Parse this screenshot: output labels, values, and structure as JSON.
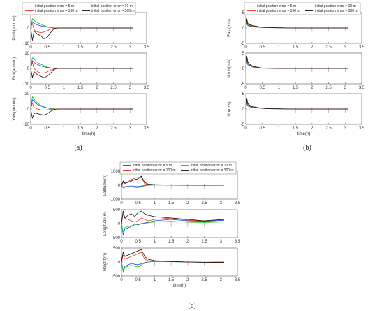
{
  "colors": {
    "series": [
      "#1f3fff",
      "#18c018",
      "#ff2a1a",
      "#111111"
    ]
  },
  "legend_entries": [
    "initial position error = 5 m",
    "initial position error = 10 m",
    "initial position error = 100 m",
    "initial position error = 300 m"
  ],
  "panels": [
    {
      "caption": "(a)"
    },
    {
      "caption": "(b)"
    },
    {
      "caption": "(c)"
    }
  ],
  "chart_data": [
    {
      "type": "line",
      "caption": "(a)",
      "series_names": [
        "initial position error = 5 m",
        "initial position error = 10 m",
        "initial position error = 100 m",
        "initial position error = 300 m"
      ],
      "subplots": [
        {
          "ylabel": "Pitch(arcmin)",
          "xlabel": "",
          "xlim": [
            0,
            3.5
          ],
          "ylim": [
            -10,
            10
          ],
          "xticks": [
            "0",
            "0.5",
            "1",
            "1.5",
            "2",
            "2.5",
            "3",
            "3.5"
          ],
          "yticks": [
            "-10",
            "0",
            "10"
          ],
          "x": [
            0,
            0.05,
            0.1,
            0.15,
            0.2,
            0.3,
            0.4,
            0.5,
            0.6,
            0.7,
            0.8,
            1.0,
            1.5,
            2.0,
            2.5,
            3.1
          ],
          "series": [
            [
              0,
              4,
              3,
              2.5,
              2,
              1.4,
              1,
              0.6,
              0.3,
              0.1,
              0,
              0,
              0,
              0,
              0,
              0
            ],
            [
              0,
              6,
              5,
              4,
              3.5,
              2.5,
              1.6,
              0.8,
              0.3,
              0.1,
              0,
              0,
              0,
              0,
              0,
              0
            ],
            [
              0,
              3,
              -1,
              -2,
              -2.5,
              -3,
              -2.6,
              -1.8,
              -0.8,
              -0.2,
              0,
              0,
              0,
              0,
              0,
              0
            ],
            [
              0,
              -8,
              -2,
              -3,
              -4,
              -5,
              -7,
              -6,
              -3,
              -0.5,
              0,
              0,
              0,
              0,
              0,
              0
            ]
          ]
        },
        {
          "ylabel": "Roll(arcmin)",
          "xlabel": "",
          "xlim": [
            0,
            3.5
          ],
          "ylim": [
            -10,
            10
          ],
          "xticks": [
            "0",
            "0.5",
            "1",
            "1.5",
            "2",
            "2.5",
            "3",
            "3.5"
          ],
          "yticks": [
            "-10",
            "0",
            "10"
          ],
          "x": [
            0,
            0.05,
            0.1,
            0.15,
            0.2,
            0.3,
            0.4,
            0.5,
            0.6,
            0.7,
            0.8,
            1.0,
            1.5,
            2.0,
            2.5,
            3.1
          ],
          "series": [
            [
              0,
              5,
              4,
              3.2,
              2.6,
              1.8,
              1.1,
              0.6,
              0.3,
              0.1,
              0,
              0,
              0,
              0,
              0,
              0
            ],
            [
              0,
              7,
              6,
              5,
              4,
              2.8,
              1.8,
              0.9,
              0.4,
              0.1,
              0,
              0,
              0,
              0,
              0,
              0
            ],
            [
              0,
              4,
              0,
              -1,
              -2,
              -3,
              -3,
              -2.2,
              -1,
              -0.3,
              0,
              0,
              0,
              0,
              0,
              0
            ],
            [
              0,
              -6,
              -2,
              -3,
              -4,
              -5,
              -6,
              -5,
              -3,
              -0.6,
              0,
              0,
              0,
              0,
              0,
              0
            ]
          ]
        },
        {
          "ylabel": "Yaw(arcmin)",
          "xlabel": "time(h)",
          "xlim": [
            0,
            3.5
          ],
          "ylim": [
            -20,
            20
          ],
          "xticks": [
            "0",
            "0.5",
            "1",
            "1.5",
            "2",
            "2.5",
            "3",
            "3.5"
          ],
          "yticks": [
            "-20",
            "0",
            "20"
          ],
          "x": [
            0,
            0.05,
            0.1,
            0.15,
            0.2,
            0.3,
            0.4,
            0.5,
            0.6,
            0.7,
            0.8,
            1.0,
            1.5,
            2.0,
            2.5,
            3.1
          ],
          "series": [
            [
              0,
              12,
              10,
              8,
              6,
              4,
              2.5,
              1.4,
              0.6,
              0.2,
              0,
              0,
              0,
              0,
              0,
              0
            ],
            [
              0,
              16,
              13,
              10,
              8,
              5,
              3,
              1.6,
              0.7,
              0.2,
              0,
              0,
              0,
              0,
              0,
              0
            ],
            [
              0,
              8,
              2,
              1,
              0,
              -1,
              -1.5,
              -1,
              -0.5,
              -0.1,
              0,
              0,
              0,
              0,
              0,
              0
            ],
            [
              0,
              -12,
              -6,
              -5,
              -6,
              -7,
              -8,
              -6,
              -3,
              -0.8,
              0,
              0,
              0,
              0,
              0,
              0
            ]
          ]
        }
      ]
    },
    {
      "type": "line",
      "caption": "(b)",
      "series_names": [
        "initial position error = 5 m",
        "initial position error = 10 m",
        "initial position error = 100 m",
        "initial position error = 300 m"
      ],
      "subplots": [
        {
          "ylabel": "East(m/s)",
          "xlabel": "",
          "xlim": [
            0,
            3.5
          ],
          "ylim": [
            -5,
            5
          ],
          "xticks": [
            "0",
            "0.5",
            "1",
            "1.5",
            "2",
            "2.5",
            "3",
            "3.5"
          ],
          "yticks": [
            "-5",
            "0",
            "5"
          ],
          "x": [
            0,
            0.03,
            0.06,
            0.1,
            0.15,
            0.2,
            0.3,
            0.4,
            0.5,
            0.7,
            1.0,
            1.5,
            2.0,
            2.5,
            3.1
          ],
          "series": [
            [
              0,
              1.5,
              0.8,
              0.6,
              0.5,
              0.4,
              0.3,
              0.2,
              0.15,
              0.1,
              0.05,
              0,
              0,
              0,
              0
            ],
            [
              0,
              2,
              1,
              0.8,
              0.6,
              0.5,
              0.3,
              0.2,
              0.15,
              0.1,
              0.05,
              0,
              0,
              0,
              0
            ],
            [
              0,
              2.5,
              1.2,
              1,
              0.8,
              0.6,
              0.5,
              0.3,
              0.2,
              0.1,
              0.05,
              0,
              0,
              0,
              0
            ],
            [
              0,
              3,
              1.5,
              1.2,
              1,
              0.8,
              0.6,
              0.4,
              0.3,
              0.15,
              0.05,
              0,
              0,
              0,
              0
            ]
          ]
        },
        {
          "ylabel": "North(m/s)",
          "xlabel": "",
          "xlim": [
            0,
            3.5
          ],
          "ylim": [
            -5,
            5
          ],
          "xticks": [
            "0",
            "0.5",
            "1",
            "1.5",
            "2",
            "2.5",
            "3",
            "3.5"
          ],
          "yticks": [
            "-5",
            "0",
            "5"
          ],
          "x": [
            0,
            0.03,
            0.06,
            0.1,
            0.15,
            0.2,
            0.3,
            0.4,
            0.5,
            0.7,
            1.0,
            1.5,
            2.0,
            2.5,
            3.1
          ],
          "series": [
            [
              0,
              2.5,
              1.2,
              1,
              0.8,
              0.5,
              0.3,
              0.2,
              0.1,
              0.05,
              0,
              0,
              0,
              0,
              0
            ],
            [
              0,
              3,
              1.5,
              1.2,
              0.9,
              0.6,
              0.4,
              0.2,
              0.1,
              0.05,
              0,
              0,
              0,
              0,
              0
            ],
            [
              0,
              3.5,
              2,
              1.4,
              1,
              0.7,
              0.4,
              0.25,
              0.1,
              0.05,
              0,
              0,
              0,
              0,
              0
            ],
            [
              0,
              4,
              2.2,
              1.6,
              1.2,
              0.8,
              0.5,
              0.3,
              0.15,
              0.05,
              0,
              0,
              0,
              0,
              0
            ]
          ]
        },
        {
          "ylabel": "Up(m/s)",
          "xlabel": "time(h)",
          "xlim": [
            0,
            3.5
          ],
          "ylim": [
            -5,
            5
          ],
          "xticks": [
            "0",
            "0.5",
            "1",
            "1.5",
            "2",
            "2.5",
            "3",
            "3.5"
          ],
          "yticks": [
            "-5",
            "0",
            "5"
          ],
          "x": [
            0,
            0.03,
            0.06,
            0.1,
            0.15,
            0.2,
            0.3,
            0.4,
            0.5,
            0.7,
            1.0,
            1.5,
            2.0,
            2.5,
            3.1
          ],
          "series": [
            [
              0,
              2,
              1,
              0.8,
              0.6,
              0.5,
              0.4,
              0.3,
              0.2,
              0.1,
              0.05,
              0,
              0,
              0,
              0
            ],
            [
              0,
              2.5,
              1.2,
              1,
              0.8,
              0.6,
              0.4,
              0.3,
              0.2,
              0.1,
              0.05,
              0,
              0,
              0,
              0
            ],
            [
              0,
              3,
              1.5,
              1.2,
              0.9,
              0.7,
              0.5,
              0.35,
              0.2,
              0.1,
              0.05,
              0,
              0,
              0,
              0
            ],
            [
              0,
              3.5,
              1.8,
              1.4,
              1,
              0.8,
              0.6,
              0.4,
              0.25,
              0.1,
              0.05,
              0,
              0,
              0,
              0
            ]
          ]
        }
      ]
    },
    {
      "type": "line",
      "caption": "(c)",
      "series_names": [
        "initial position error = 5 m",
        "initial position error = 10 m",
        "initial position error = 100 m",
        "initial position error = 300 m"
      ],
      "subplots": [
        {
          "ylabel": "Latitude(m)",
          "xlabel": "",
          "xlim": [
            0,
            3.5
          ],
          "ylim": [
            -1000,
            1000
          ],
          "xticks": [
            "0",
            "0.5",
            "1",
            "1.5",
            "2",
            "2.5",
            "3",
            "3.5"
          ],
          "yticks": [
            "-1000",
            "0",
            "1000"
          ],
          "x": [
            0,
            0.05,
            0.1,
            0.2,
            0.3,
            0.4,
            0.5,
            0.6,
            0.7,
            0.8,
            1.0,
            1.5,
            2.0,
            2.5,
            3.1
          ],
          "series": [
            [
              0,
              -150,
              -100,
              -80,
              -50,
              -80,
              -100,
              -60,
              -20,
              0,
              20,
              10,
              0,
              0,
              10
            ],
            [
              0,
              -200,
              -150,
              -100,
              -120,
              -150,
              -180,
              -100,
              -40,
              0,
              20,
              10,
              0,
              0,
              10
            ],
            [
              0,
              200,
              100,
              250,
              400,
              500,
              550,
              600,
              100,
              50,
              30,
              20,
              10,
              0,
              10
            ],
            [
              0,
              300,
              150,
              200,
              300,
              400,
              450,
              650,
              200,
              80,
              40,
              20,
              10,
              0,
              10
            ]
          ]
        },
        {
          "ylabel": "Longitude(m)",
          "xlabel": "",
          "xlim": [
            0,
            3.5
          ],
          "ylim": [
            -500,
            500
          ],
          "xticks": [
            "0",
            "0.5",
            "1",
            "1.5",
            "2",
            "2.5",
            "3",
            "3.5"
          ],
          "yticks": [
            "-500",
            "0",
            "500"
          ],
          "x": [
            0,
            0.05,
            0.1,
            0.2,
            0.3,
            0.4,
            0.5,
            0.6,
            0.7,
            0.8,
            1.0,
            1.5,
            2.0,
            2.5,
            3.1
          ],
          "series": [
            [
              0,
              -400,
              -200,
              -150,
              -100,
              0,
              -50,
              0,
              20,
              50,
              100,
              150,
              100,
              80,
              120
            ],
            [
              0,
              -300,
              -150,
              -100,
              -80,
              -50,
              -20,
              0,
              10,
              30,
              60,
              80,
              50,
              40,
              60
            ],
            [
              0,
              350,
              200,
              150,
              100,
              50,
              100,
              200,
              150,
              100,
              150,
              200,
              120,
              100,
              150
            ],
            [
              0,
              450,
              200,
              300,
              350,
              250,
              400,
              450,
              350,
              300,
              250,
              200,
              150,
              100,
              150
            ]
          ]
        },
        {
          "ylabel": "Height(m)",
          "xlabel": "time(h)",
          "xlim": [
            0,
            3.5
          ],
          "ylim": [
            -500,
            500
          ],
          "xticks": [
            "0",
            "0.5",
            "1",
            "1.5",
            "2",
            "2.5",
            "3",
            "3.5"
          ],
          "yticks": [
            "-500",
            "0",
            "500"
          ],
          "x": [
            0,
            0.05,
            0.1,
            0.2,
            0.3,
            0.4,
            0.5,
            0.6,
            0.7,
            0.8,
            1.0,
            1.5,
            2.0,
            2.5,
            3.1
          ],
          "series": [
            [
              0,
              -300,
              -150,
              -100,
              -50,
              -80,
              -100,
              -60,
              -20,
              0,
              20,
              10,
              0,
              -10,
              0
            ],
            [
              0,
              -350,
              -200,
              -150,
              -120,
              -150,
              -180,
              -100,
              -40,
              0,
              20,
              10,
              0,
              -10,
              0
            ],
            [
              0,
              250,
              100,
              150,
              200,
              250,
              300,
              350,
              100,
              50,
              30,
              20,
              0,
              -10,
              0
            ],
            [
              0,
              350,
              200,
              250,
              300,
              350,
              400,
              450,
              200,
              100,
              50,
              20,
              0,
              -10,
              -20
            ]
          ]
        }
      ]
    }
  ]
}
